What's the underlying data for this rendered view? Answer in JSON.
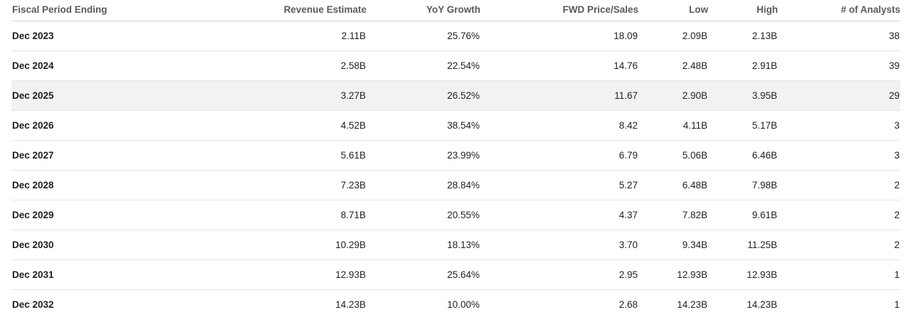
{
  "table": {
    "headers": [
      "Fiscal Period Ending",
      "Revenue Estimate",
      "YoY Growth",
      "FWD Price/Sales",
      "Low",
      "High",
      "# of Analysts"
    ],
    "highlighted_row": 2,
    "rows": [
      [
        "Dec 2023",
        "2.11B",
        "25.76%",
        "18.09",
        "2.09B",
        "2.13B",
        "38"
      ],
      [
        "Dec 2024",
        "2.58B",
        "22.54%",
        "14.76",
        "2.48B",
        "2.91B",
        "39"
      ],
      [
        "Dec 2025",
        "3.27B",
        "26.52%",
        "11.67",
        "2.90B",
        "3.95B",
        "29"
      ],
      [
        "Dec 2026",
        "4.52B",
        "38.54%",
        "8.42",
        "4.11B",
        "5.17B",
        "3"
      ],
      [
        "Dec 2027",
        "5.61B",
        "23.99%",
        "6.79",
        "5.06B",
        "6.46B",
        "3"
      ],
      [
        "Dec 2028",
        "7.23B",
        "28.84%",
        "5.27",
        "6.48B",
        "7.98B",
        "2"
      ],
      [
        "Dec 2029",
        "8.71B",
        "20.55%",
        "4.37",
        "7.82B",
        "9.61B",
        "2"
      ],
      [
        "Dec 2030",
        "10.29B",
        "18.13%",
        "3.70",
        "9.34B",
        "11.25B",
        "2"
      ],
      [
        "Dec 2031",
        "12.93B",
        "25.64%",
        "2.95",
        "12.93B",
        "12.93B",
        "1"
      ],
      [
        "Dec 2032",
        "14.23B",
        "10.00%",
        "2.68",
        "14.23B",
        "14.23B",
        "1"
      ]
    ]
  }
}
